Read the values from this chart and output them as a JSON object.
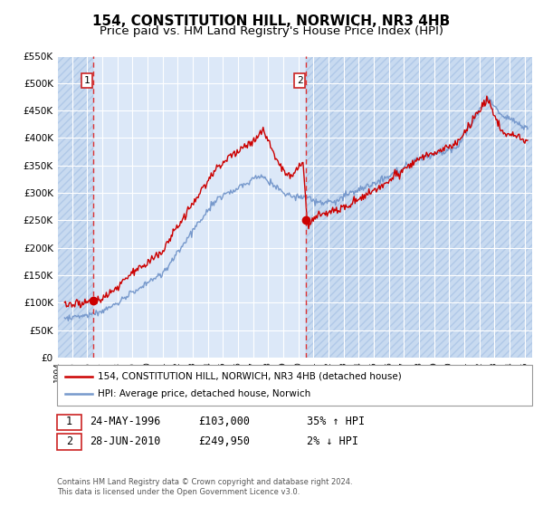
{
  "title": "154, CONSTITUTION HILL, NORWICH, NR3 4HB",
  "subtitle": "Price paid vs. HM Land Registry's House Price Index (HPI)",
  "ylim": [
    0,
    550000
  ],
  "yticks": [
    0,
    50000,
    100000,
    150000,
    200000,
    250000,
    300000,
    350000,
    400000,
    450000,
    500000,
    550000
  ],
  "ytick_labels": [
    "£0",
    "£50K",
    "£100K",
    "£150K",
    "£200K",
    "£250K",
    "£300K",
    "£350K",
    "£400K",
    "£450K",
    "£500K",
    "£550K"
  ],
  "xlim_start": 1994.0,
  "xlim_end": 2025.5,
  "xtick_years": [
    1994,
    1995,
    1996,
    1997,
    1998,
    1999,
    2000,
    2001,
    2002,
    2003,
    2004,
    2005,
    2006,
    2007,
    2008,
    2009,
    2010,
    2011,
    2012,
    2013,
    2014,
    2015,
    2016,
    2017,
    2018,
    2019,
    2020,
    2021,
    2022,
    2023,
    2024,
    2025
  ],
  "sale1_x": 1996.39,
  "sale1_y": 103000,
  "sale2_x": 2010.49,
  "sale2_y": 249950,
  "vline1_x": 1996.39,
  "vline2_x": 2010.49,
  "red_line_color": "#cc0000",
  "blue_line_color": "#7799cc",
  "vline_color": "#dd3333",
  "background_color": "#dce8f8",
  "hatch_color": "#c8d8ee",
  "grid_color": "#ffffff",
  "legend_label_red": "154, CONSTITUTION HILL, NORWICH, NR3 4HB (detached house)",
  "legend_label_blue": "HPI: Average price, detached house, Norwich",
  "sale1_date": "24-MAY-1996",
  "sale1_price": "£103,000",
  "sale1_hpi": "35% ↑ HPI",
  "sale2_date": "28-JUN-2010",
  "sale2_price": "£249,950",
  "sale2_hpi": "2% ↓ HPI",
  "footer_text": "Contains HM Land Registry data © Crown copyright and database right 2024.\nThis data is licensed under the Open Government Licence v3.0.",
  "title_fontsize": 11,
  "subtitle_fontsize": 9.5
}
